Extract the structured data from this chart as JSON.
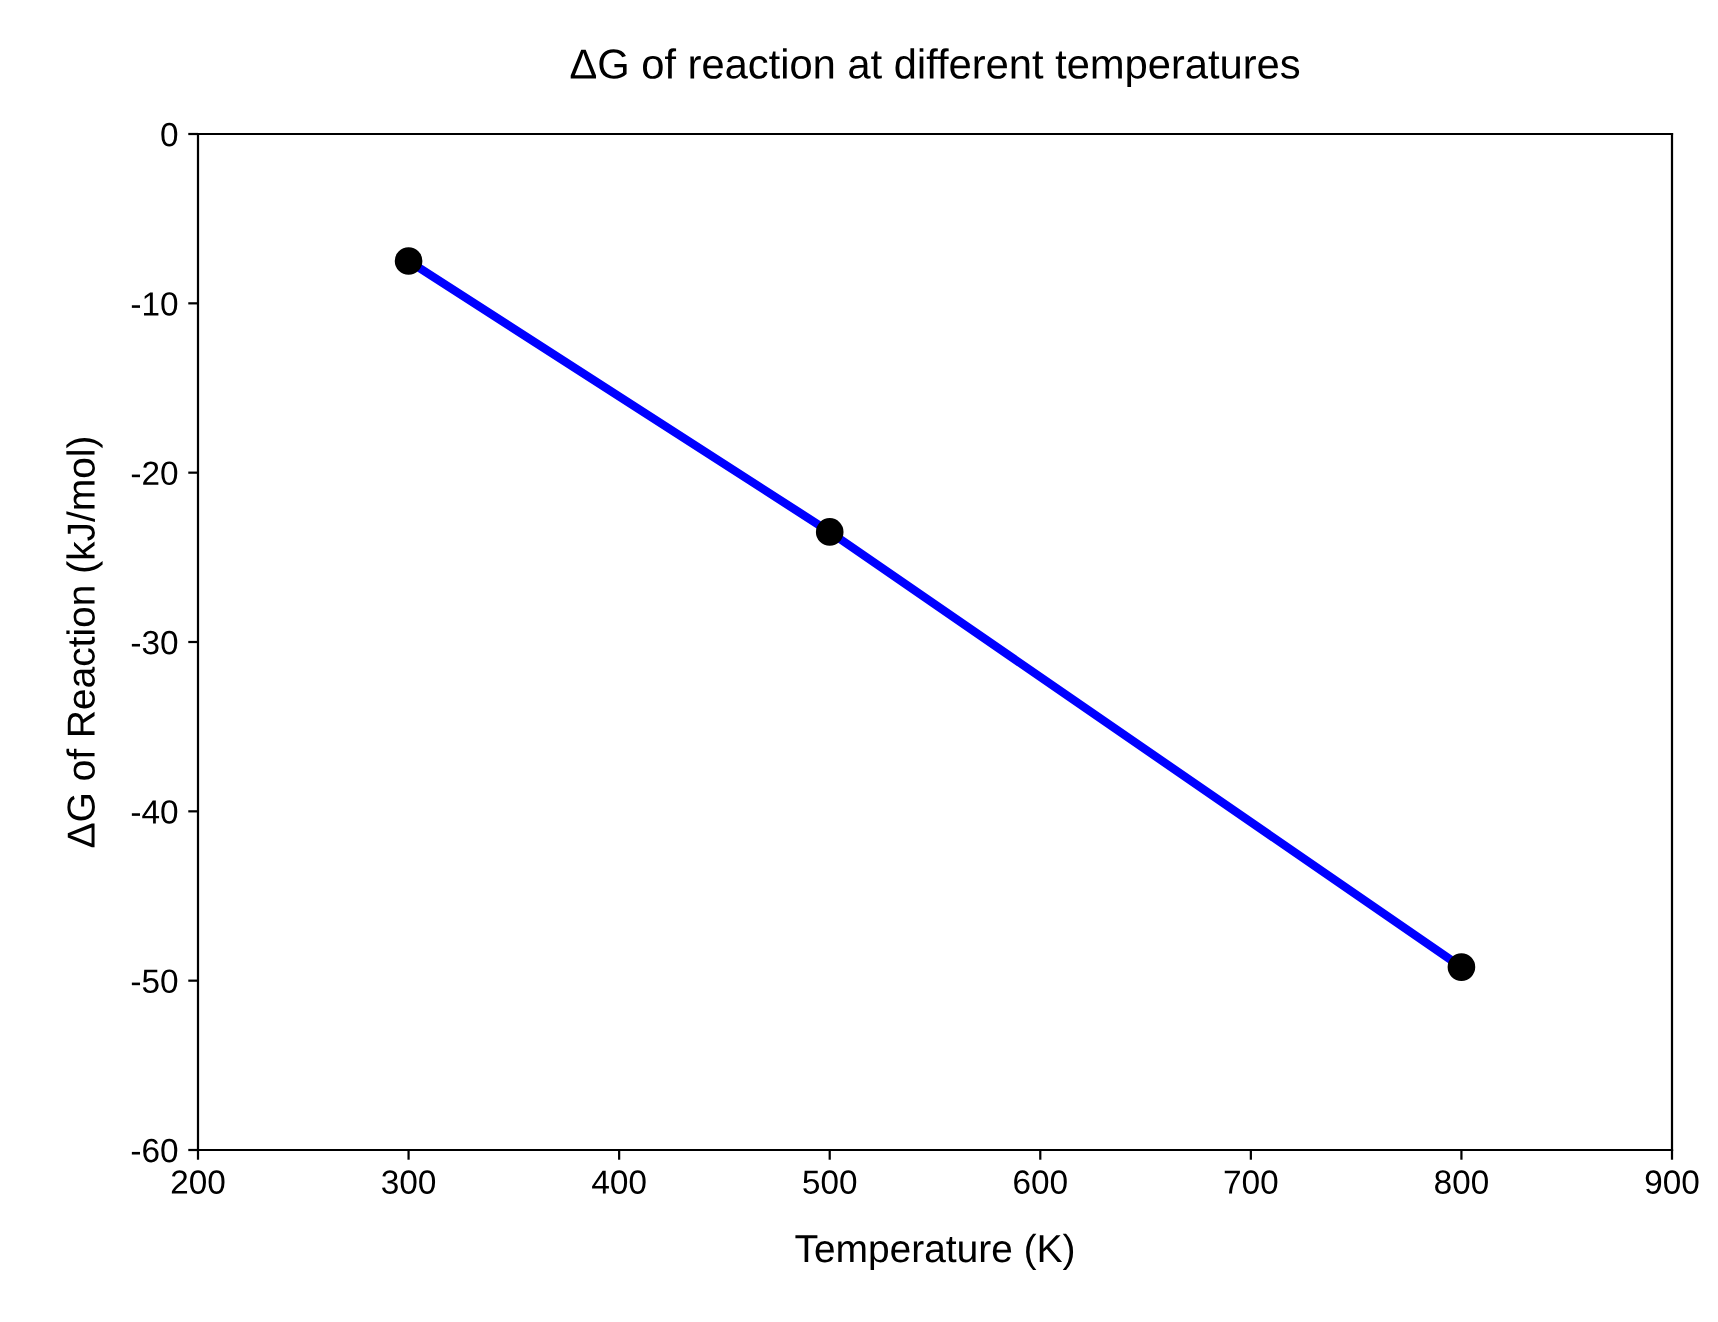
{
  "chart_data": {
    "type": "line",
    "title": "ΔG of reaction at different temperatures",
    "xlabel": "Temperature (K)",
    "ylabel": "ΔG of Reaction (kJ/mol)",
    "x": [
      300,
      500,
      800
    ],
    "series": [
      {
        "color": "#0000ff",
        "colors": [
          "#000000",
          "#000000",
          "#000000"
        ],
        "values": [
          -7.5,
          -23.5,
          -49.2
        ]
      }
    ],
    "xlim": [
      200,
      900
    ],
    "xticks": [
      200,
      300,
      400,
      500,
      600,
      700,
      800,
      900
    ],
    "ylim": [
      -60,
      0
    ],
    "yticks": [
      -60,
      -50,
      -40,
      -30,
      -20,
      -10,
      0
    ],
    "grid": false,
    "legend": false,
    "marker": "circle",
    "line_style": "solid"
  }
}
